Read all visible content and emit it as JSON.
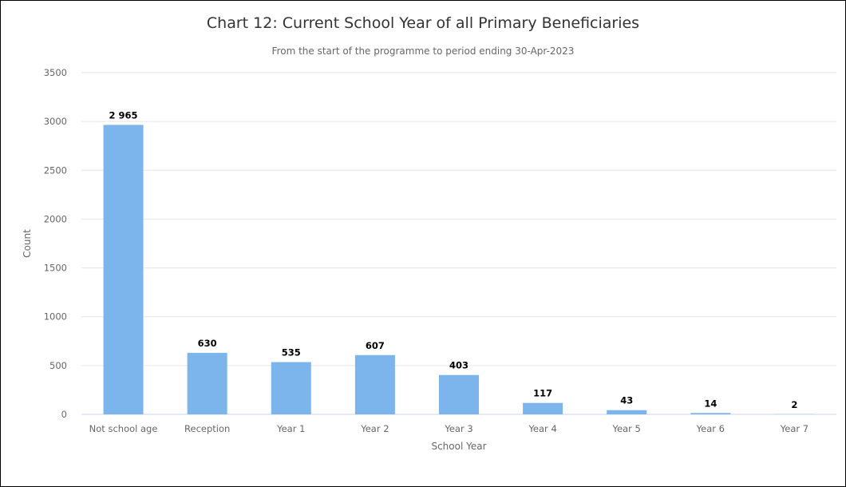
{
  "chart_data": {
    "type": "bar",
    "title": "Chart 12: Current School Year of all Primary Beneficiaries",
    "subtitle": "From the start of the programme to period ending 30-Apr-2023",
    "xlabel": "School Year",
    "ylabel": "Count",
    "categories": [
      "Not school age",
      "Reception",
      "Year 1",
      "Year 2",
      "Year 3",
      "Year 4",
      "Year 5",
      "Year 6",
      "Year 7"
    ],
    "values": [
      2965,
      630,
      535,
      607,
      403,
      117,
      43,
      14,
      2
    ],
    "data_labels": [
      "2 965",
      "630",
      "535",
      "607",
      "403",
      "117",
      "43",
      "14",
      "2"
    ],
    "ylim": [
      0,
      3500
    ],
    "yticks": [
      0,
      500,
      1000,
      1500,
      2000,
      2500,
      3000,
      3500
    ],
    "grid": true,
    "legend": "none",
    "bar_color": "#7cb5ec"
  }
}
